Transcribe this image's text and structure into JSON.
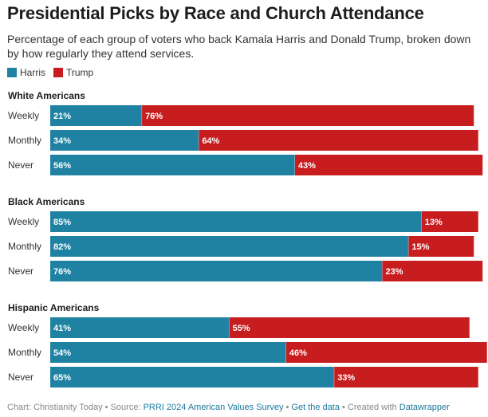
{
  "title": "Presidential Picks by Race and Church Attendance",
  "subtitle": "Percentage of each group of voters who back Kamala Harris and Donald Trump, broken down by how regularly they attend services.",
  "legend": [
    {
      "label": "Harris",
      "color": "#1f82a3"
    },
    {
      "label": "Trump",
      "color": "#c71d1f"
    }
  ],
  "chart_data": {
    "type": "bar",
    "orientation": "horizontal",
    "stacked": true,
    "xlim": [
      0,
      100
    ],
    "series_names": [
      "Harris",
      "Trump"
    ],
    "colors": {
      "Harris": "#1f82a3",
      "Trump": "#c71d1f"
    },
    "groups": [
      {
        "name": "White Americans",
        "rows": [
          {
            "label": "Weekly",
            "Harris": 21,
            "Trump": 76
          },
          {
            "label": "Monthly",
            "Harris": 34,
            "Trump": 64
          },
          {
            "label": "Never",
            "Harris": 56,
            "Trump": 43
          }
        ]
      },
      {
        "name": "Black Americans",
        "rows": [
          {
            "label": "Weekly",
            "Harris": 85,
            "Trump": 13
          },
          {
            "label": "Monthly",
            "Harris": 82,
            "Trump": 15
          },
          {
            "label": "Never",
            "Harris": 76,
            "Trump": 23
          }
        ]
      },
      {
        "name": "Hispanic Americans",
        "rows": [
          {
            "label": "Weekly",
            "Harris": 41,
            "Trump": 55
          },
          {
            "label": "Monthly",
            "Harris": 54,
            "Trump": 46
          },
          {
            "label": "Never",
            "Harris": 65,
            "Trump": 33
          }
        ]
      }
    ]
  },
  "footer": {
    "chart_credit": "Chart: Christianity Today",
    "source_prefix": "Source: ",
    "source_link": "PRRI 2024 American Values Survey",
    "get_data": "Get the data",
    "created_prefix": "Created with ",
    "created_link": "Datawrapper",
    "separator": " • "
  }
}
